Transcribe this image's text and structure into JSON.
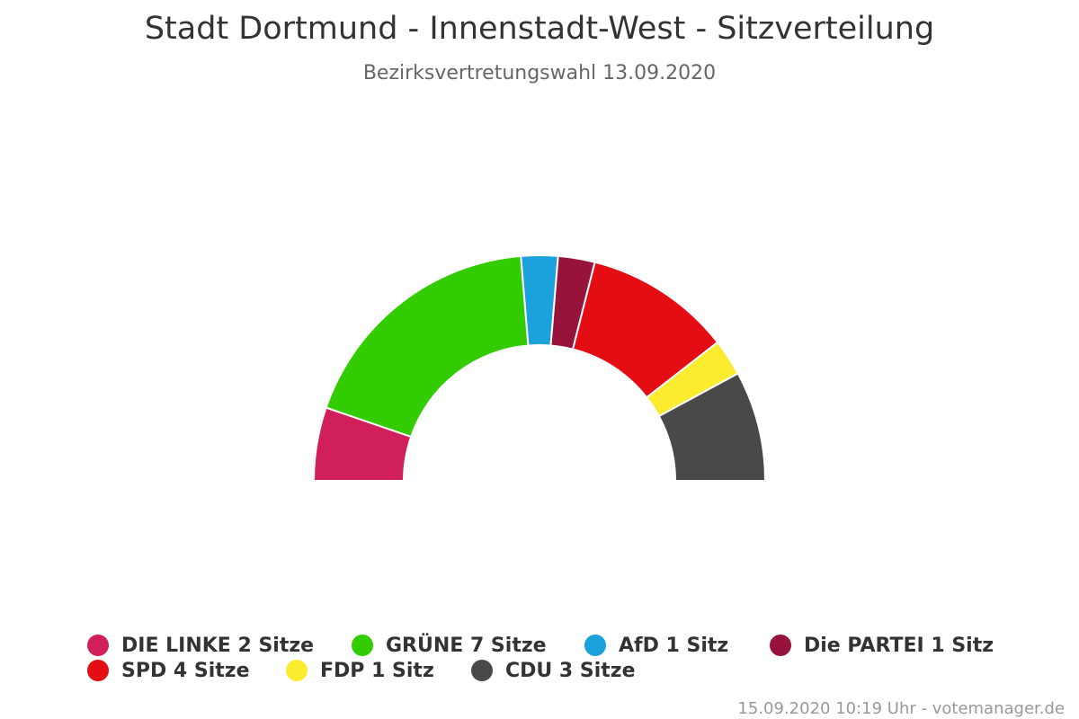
{
  "chart_data": {
    "type": "pie",
    "variant": "semicircle-parliament",
    "title": "Stadt Dortmund - Innenstadt-West - Sitzverteilung",
    "subtitle": "Bezirksvertretungswahl 13.09.2020",
    "total_seats": 19,
    "slices": [
      {
        "name": "DIE LINKE",
        "value": 2,
        "label": "DIE LINKE 2 Sitze",
        "color": "#d01f5a"
      },
      {
        "name": "GRÜNE",
        "value": 7,
        "label": "GRÜNE 7 Sitze",
        "color": "#33cc00"
      },
      {
        "name": "AfD",
        "value": 1,
        "label": "AfD 1 Sitz",
        "color": "#1ba1db"
      },
      {
        "name": "Die PARTEI",
        "value": 1,
        "label": "Die PARTEI 1 Sitz",
        "color": "#98133c"
      },
      {
        "name": "SPD",
        "value": 4,
        "label": "SPD 4 Sitze",
        "color": "#e30d13"
      },
      {
        "name": "FDP",
        "value": 1,
        "label": "FDP 1 Sitz",
        "color": "#fbec2f"
      },
      {
        "name": "CDU",
        "value": 3,
        "label": "CDU 3 Sitze",
        "color": "#494949"
      }
    ],
    "legend_position": "bottom"
  },
  "credits": "15.09.2020 10:19 Uhr - votemanager.de"
}
